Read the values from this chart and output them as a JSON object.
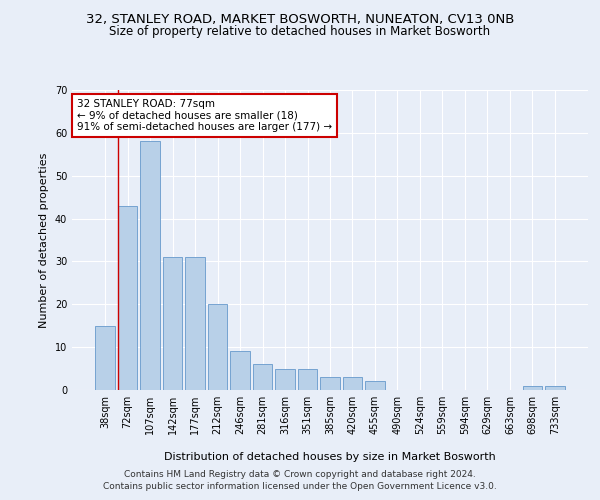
{
  "title1": "32, STANLEY ROAD, MARKET BOSWORTH, NUNEATON, CV13 0NB",
  "title2": "Size of property relative to detached houses in Market Bosworth",
  "xlabel": "Distribution of detached houses by size in Market Bosworth",
  "ylabel": "Number of detached properties",
  "categories": [
    "38sqm",
    "72sqm",
    "107sqm",
    "142sqm",
    "177sqm",
    "212sqm",
    "246sqm",
    "281sqm",
    "316sqm",
    "351sqm",
    "385sqm",
    "420sqm",
    "455sqm",
    "490sqm",
    "524sqm",
    "559sqm",
    "594sqm",
    "629sqm",
    "663sqm",
    "698sqm",
    "733sqm"
  ],
  "values": [
    15,
    43,
    58,
    31,
    31,
    20,
    9,
    6,
    5,
    5,
    3,
    3,
    2,
    0,
    0,
    0,
    0,
    0,
    0,
    1,
    1
  ],
  "bar_color": "#b8d0e8",
  "bar_edge_color": "#6699cc",
  "highlight_color": "#cc0000",
  "ylim": [
    0,
    70
  ],
  "yticks": [
    0,
    10,
    20,
    30,
    40,
    50,
    60,
    70
  ],
  "annotation_text": "32 STANLEY ROAD: 77sqm\n← 9% of detached houses are smaller (18)\n91% of semi-detached houses are larger (177) →",
  "annotation_box_color": "#ffffff",
  "annotation_border_color": "#cc0000",
  "footer1": "Contains HM Land Registry data © Crown copyright and database right 2024.",
  "footer2": "Contains public sector information licensed under the Open Government Licence v3.0.",
  "background_color": "#e8eef8",
  "grid_color": "#ffffff",
  "title1_fontsize": 9.5,
  "title2_fontsize": 8.5,
  "axis_label_fontsize": 8,
  "tick_fontsize": 7,
  "footer_fontsize": 6.5,
  "annot_fontsize": 7.5
}
